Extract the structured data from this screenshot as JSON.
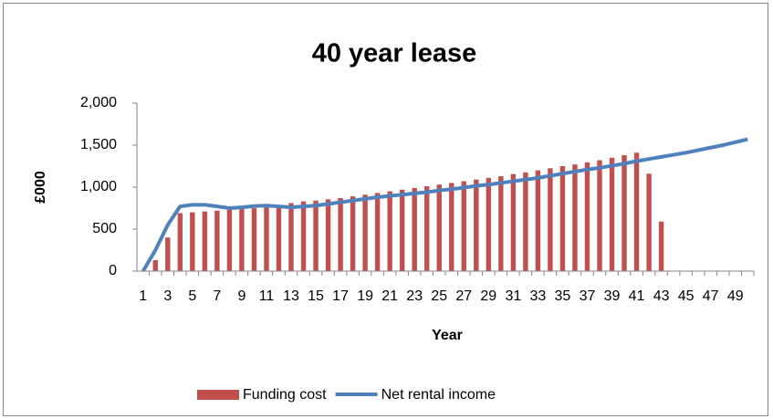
{
  "chart_data": {
    "type": "bar_line",
    "title": "40 year lease",
    "x_label": "Year",
    "y_label": "£000",
    "categories": [
      1,
      null,
      3,
      null,
      5,
      null,
      7,
      null,
      9,
      null,
      11,
      null,
      13,
      null,
      15,
      null,
      17,
      null,
      19,
      null,
      21,
      null,
      23,
      null,
      25,
      null,
      27,
      null,
      29,
      null,
      31,
      null,
      33,
      null,
      35,
      null,
      37,
      null,
      39,
      null,
      41,
      null,
      43,
      null,
      45,
      null,
      47,
      null,
      49,
      null
    ],
    "series": [
      {
        "name": "Funding cost",
        "type": "bar",
        "color": "#c0504d",
        "values": [
          0,
          130,
          400,
          690,
          700,
          710,
          720,
          730,
          740,
          750,
          760,
          780,
          810,
          830,
          840,
          855,
          870,
          890,
          910,
          930,
          950,
          970,
          990,
          1010,
          1030,
          1050,
          1070,
          1090,
          1110,
          1130,
          1155,
          1175,
          1200,
          1225,
          1250,
          1270,
          1295,
          1320,
          1350,
          1380,
          1410,
          1160,
          590,
          null,
          null,
          null,
          null,
          null,
          null,
          null
        ]
      },
      {
        "name": "Net rental income",
        "type": "line",
        "color": "#4f81bd",
        "values": [
          0,
          250,
          550,
          770,
          790,
          790,
          770,
          750,
          760,
          775,
          780,
          770,
          760,
          770,
          780,
          800,
          820,
          840,
          860,
          880,
          895,
          910,
          925,
          940,
          960,
          975,
          995,
          1015,
          1030,
          1050,
          1070,
          1090,
          1110,
          1135,
          1160,
          1185,
          1210,
          1230,
          1255,
          1280,
          1310,
          1335,
          1360,
          1385,
          1410,
          1440,
          1470,
          1500,
          1535,
          1570
        ]
      }
    ],
    "ylim": [
      0,
      2000
    ],
    "yticks": [
      0,
      500,
      {
        "value": 1000,
        "label": "1,000"
      },
      {
        "value": 1500,
        "label": "1,500"
      },
      {
        "value": 2000,
        "label": "2,000"
      }
    ],
    "legend": "bottom"
  }
}
